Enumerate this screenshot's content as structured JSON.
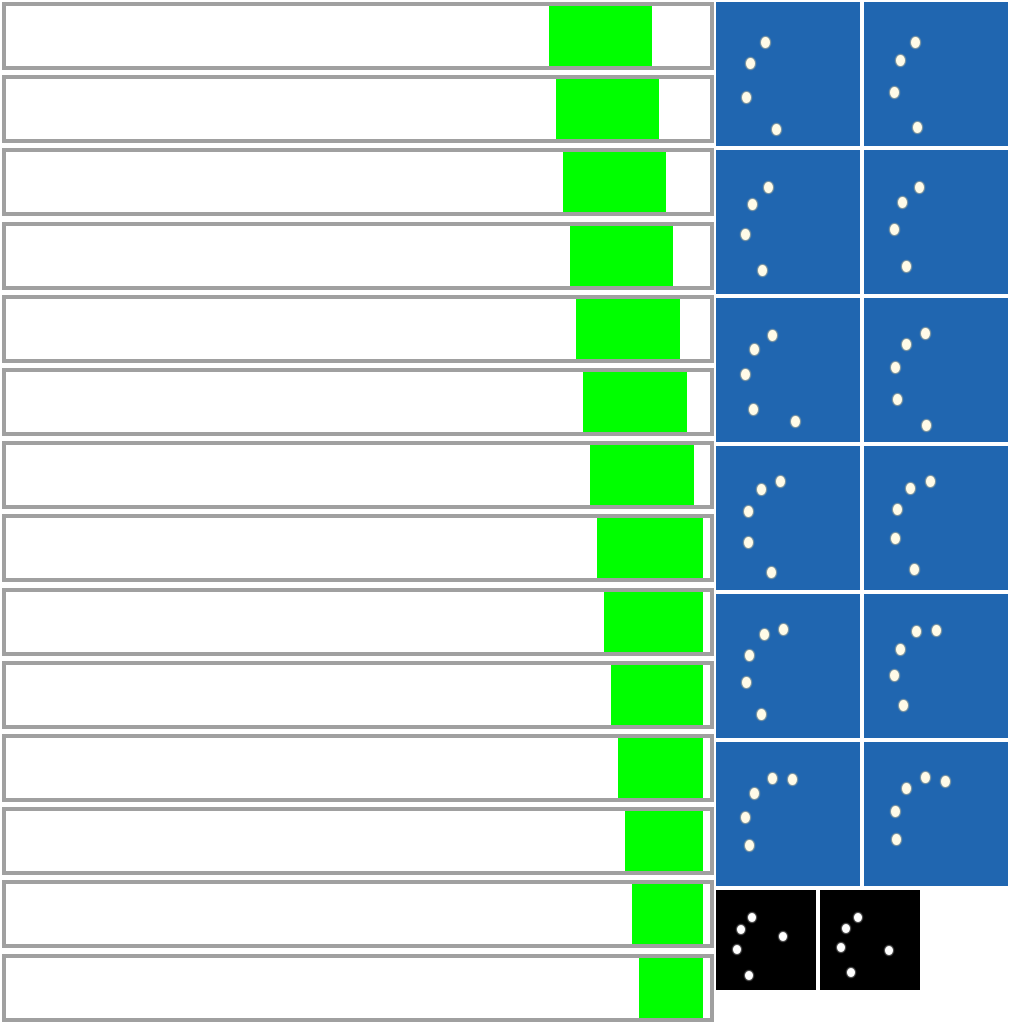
{
  "colors": {
    "bar_border": "#a0a0a0",
    "bar_background": "#ffffff",
    "bar_fill": "#00ff00",
    "tile_background": "#2066b0",
    "mini_background": "#000000"
  },
  "progress_bars": [
    {
      "start": 0.779,
      "end": 0.927
    },
    {
      "start": 0.789,
      "end": 0.937
    },
    {
      "start": 0.799,
      "end": 0.947
    },
    {
      "start": 0.809,
      "end": 0.957
    },
    {
      "start": 0.818,
      "end": 0.967
    },
    {
      "start": 0.828,
      "end": 0.977
    },
    {
      "start": 0.838,
      "end": 0.987
    },
    {
      "start": 0.848,
      "end": 1.0
    },
    {
      "start": 0.858,
      "end": 1.0
    },
    {
      "start": 0.868,
      "end": 1.0
    },
    {
      "start": 0.878,
      "end": 1.0
    },
    {
      "start": 0.888,
      "end": 1.0
    },
    {
      "start": 0.898,
      "end": 1.0
    },
    {
      "start": 0.908,
      "end": 1.0
    }
  ]
}
